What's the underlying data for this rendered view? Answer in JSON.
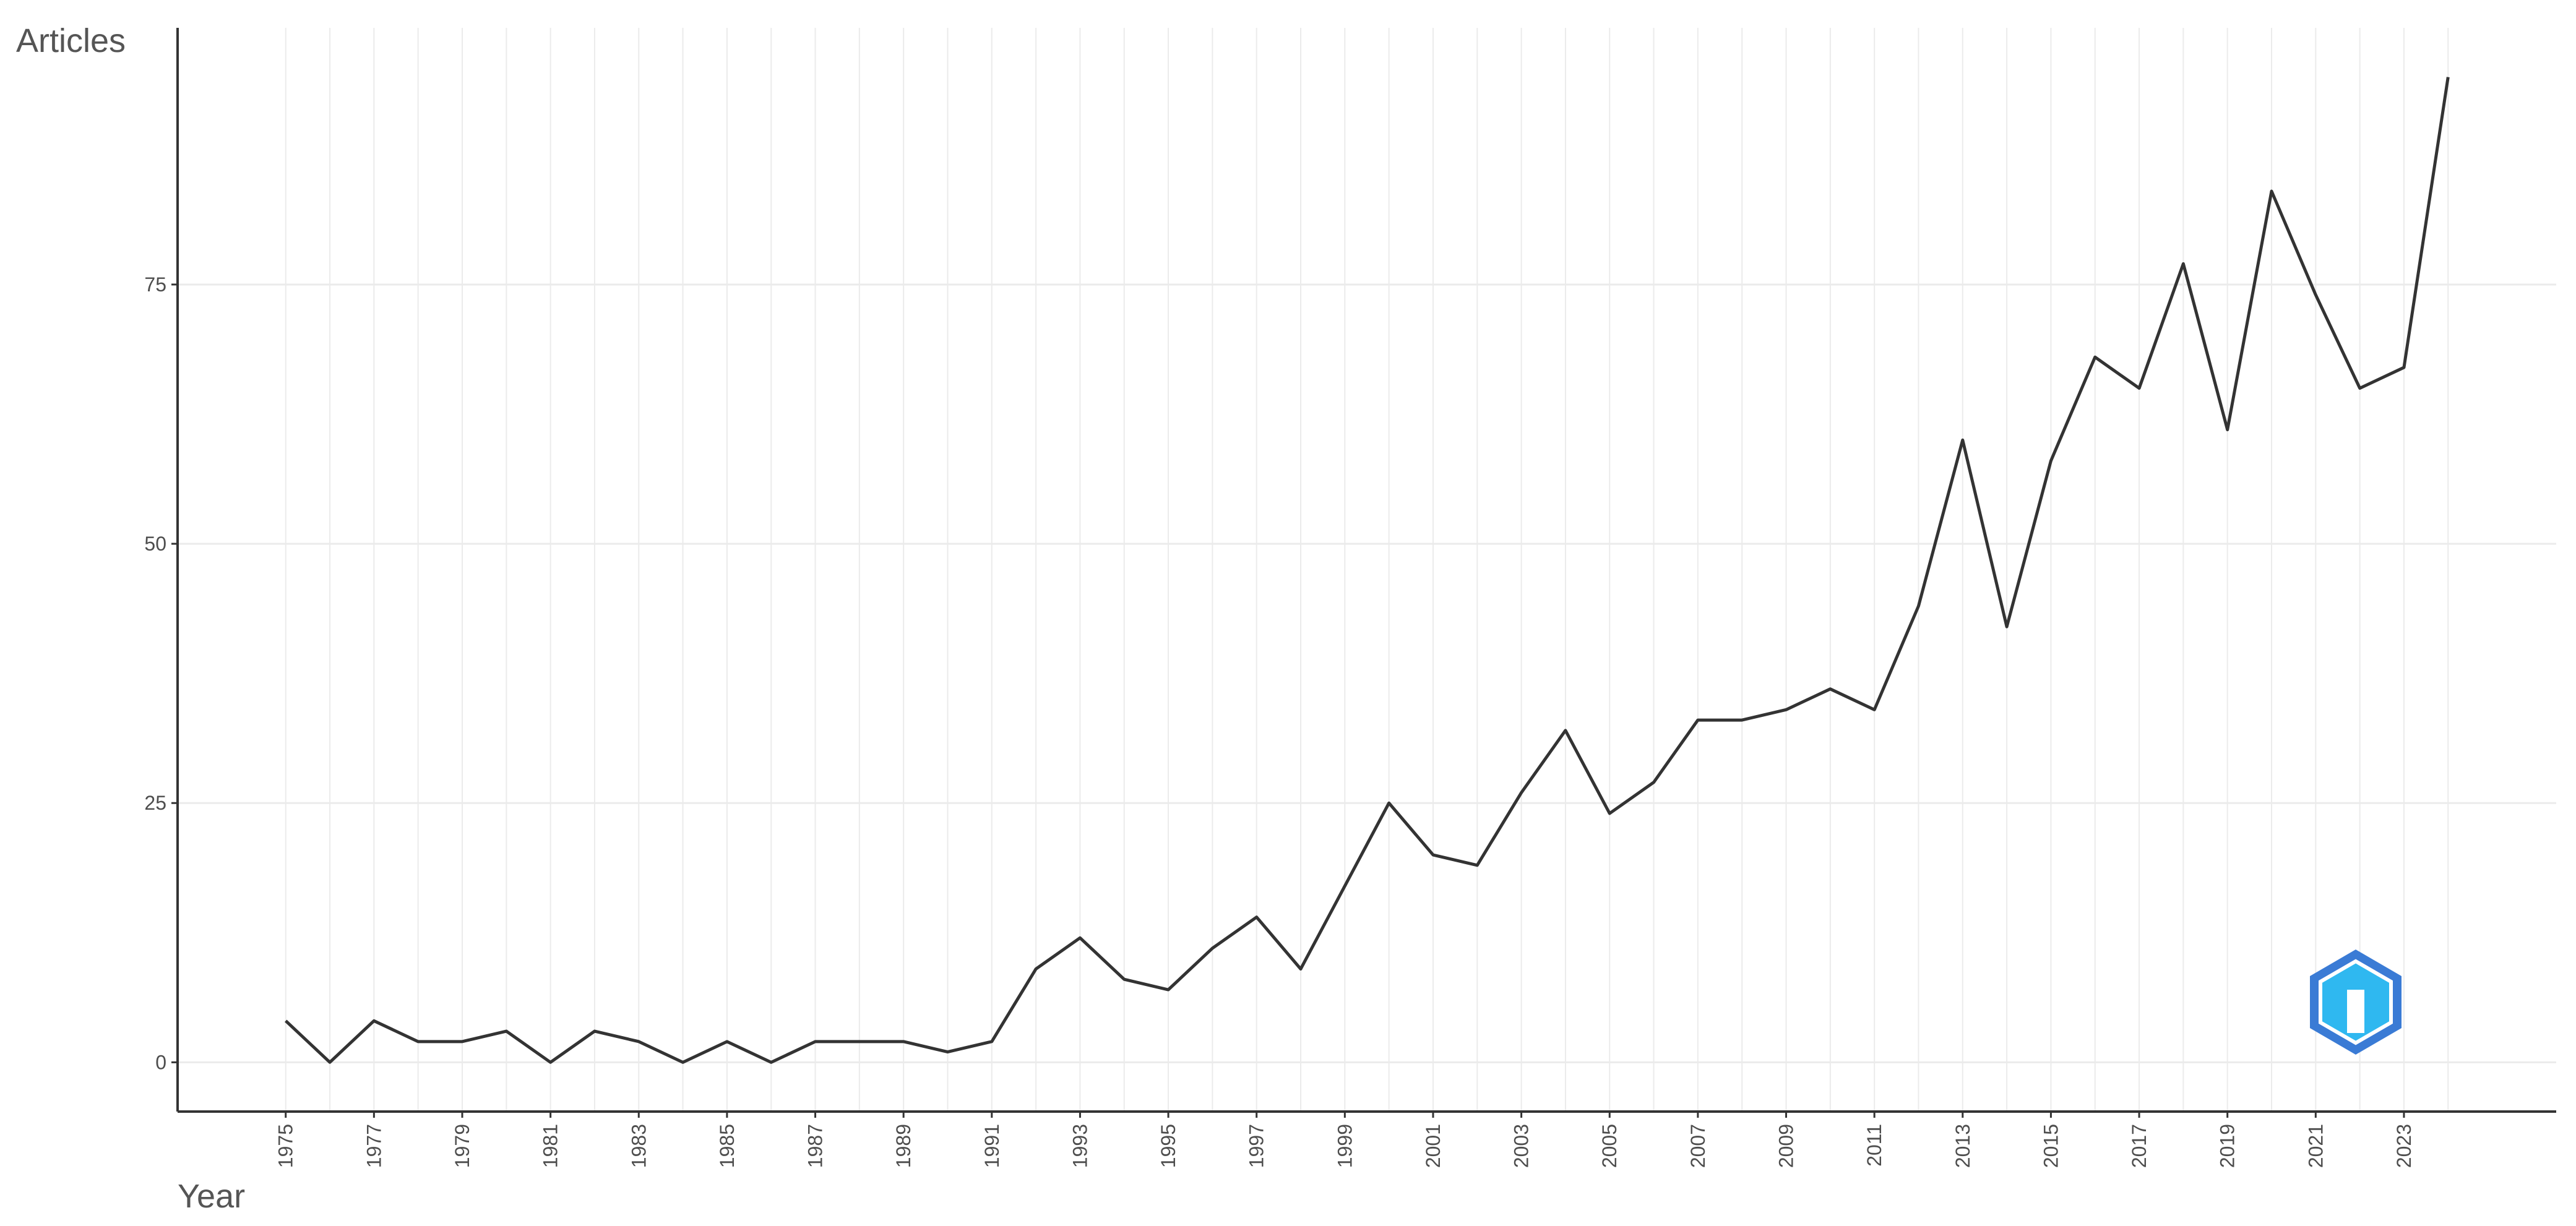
{
  "chart_data": {
    "type": "line",
    "y_label": "Articles",
    "x_label": "Year",
    "x": [
      1975,
      1976,
      1977,
      1978,
      1979,
      1980,
      1981,
      1982,
      1983,
      1984,
      1985,
      1986,
      1987,
      1988,
      1989,
      1990,
      1991,
      1992,
      1993,
      1994,
      1995,
      1996,
      1997,
      1998,
      1999,
      2000,
      2001,
      2002,
      2003,
      2004,
      2005,
      2006,
      2007,
      2008,
      2009,
      2010,
      2011,
      2012,
      2013,
      2014,
      2015,
      2016,
      2017,
      2018,
      2019,
      2020,
      2021,
      2022,
      2023,
      2024
    ],
    "values": [
      4,
      0,
      4,
      2,
      2,
      3,
      0,
      3,
      2,
      0,
      2,
      0,
      2,
      2,
      2,
      1,
      2,
      9,
      12,
      8,
      7,
      11,
      14,
      9,
      17,
      25,
      20,
      19,
      26,
      32,
      24,
      27,
      33,
      33,
      34,
      36,
      34,
      44,
      60,
      42,
      58,
      68,
      65,
      77,
      61,
      84,
      74,
      65,
      67,
      95
    ],
    "color": "#333333",
    "xlim": [
      1972.55,
      2026.45
    ],
    "xticks": [
      1975,
      1977,
      1979,
      1981,
      1983,
      1985,
      1987,
      1989,
      1991,
      1993,
      1995,
      1997,
      1999,
      2001,
      2003,
      2005,
      2007,
      2009,
      2011,
      2013,
      2015,
      2017,
      2019,
      2021,
      2023
    ],
    "ylim": [
      -4.75,
      99.75
    ],
    "yticks": [
      0,
      25,
      50,
      75
    ],
    "grid": true
  }
}
